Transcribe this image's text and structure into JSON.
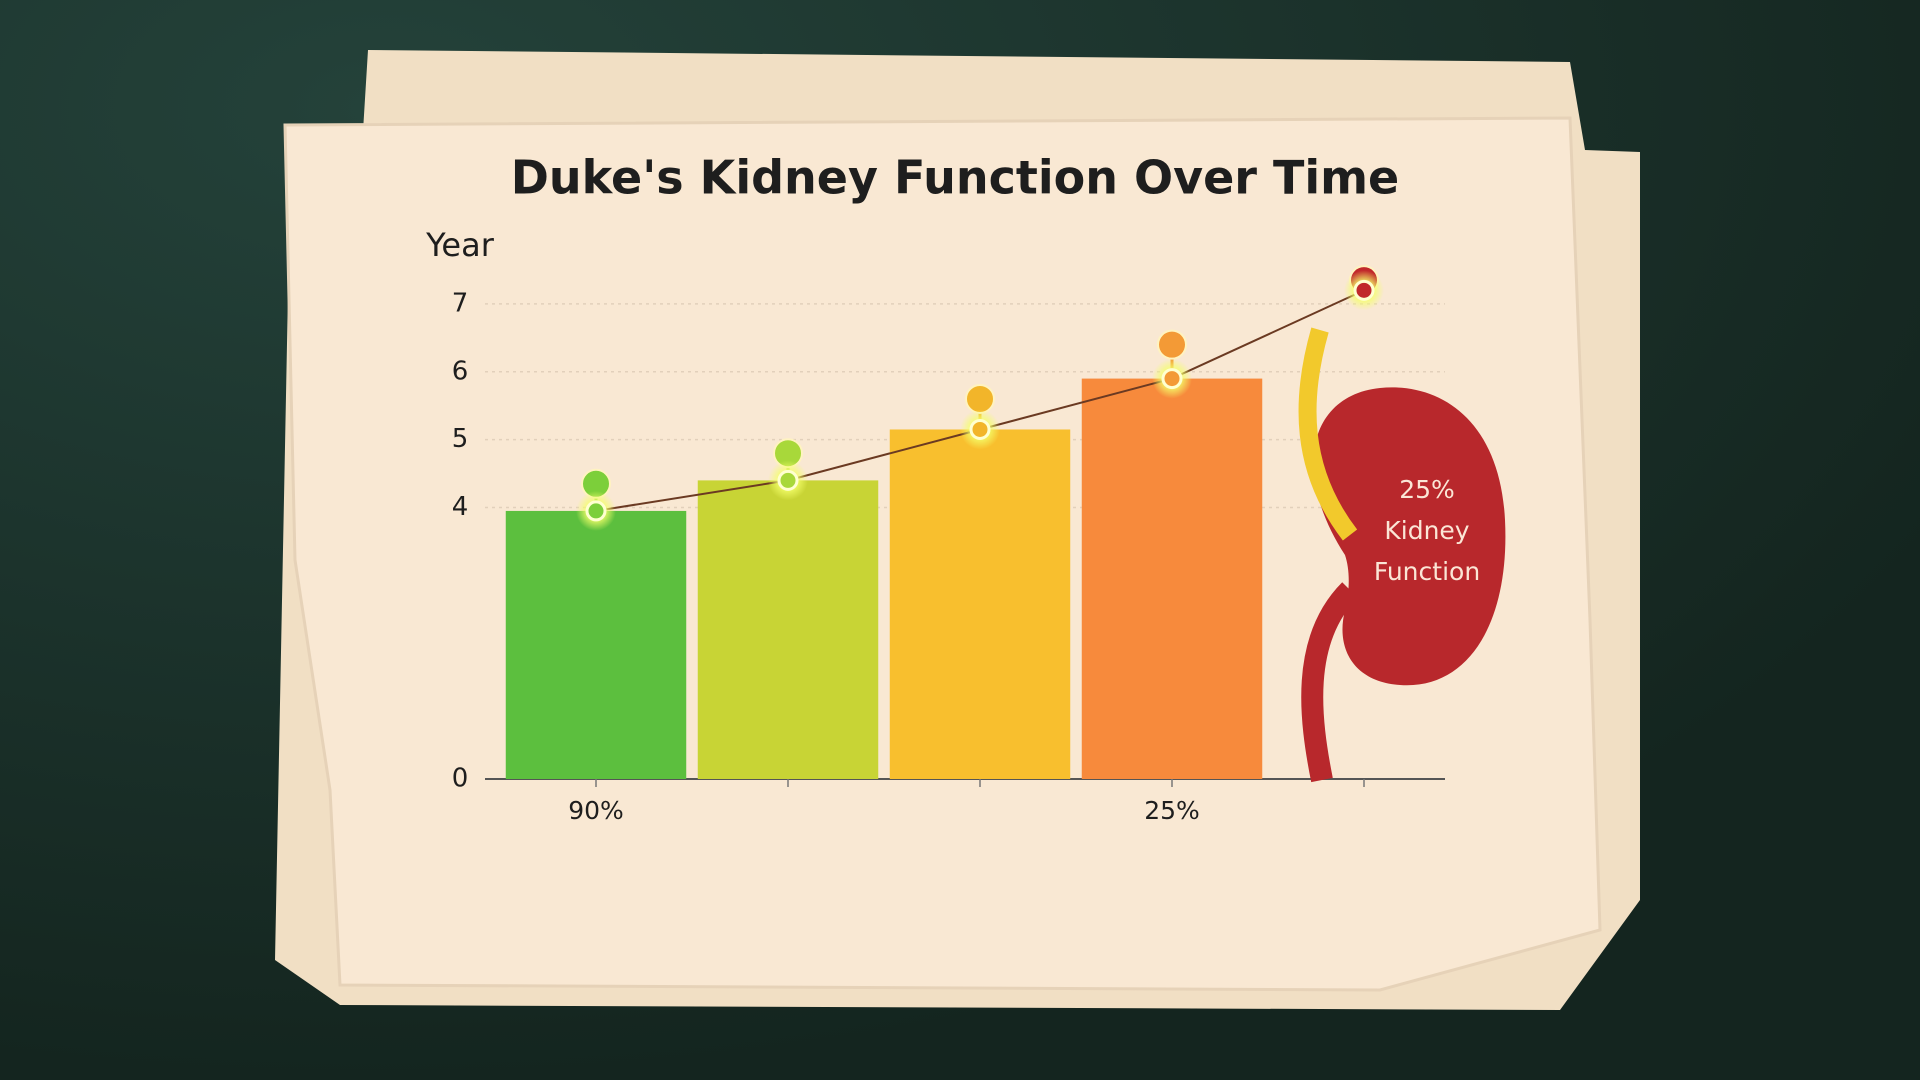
{
  "chart_data": {
    "type": "bar",
    "title": "Duke's Kidney Function Over Time",
    "y_label": "Year",
    "categories": [
      "90%",
      null,
      null,
      "25%",
      null
    ],
    "values": [
      3.95,
      4.4,
      5.15,
      5.9,
      7.2
    ],
    "marker_values": [
      4.35,
      4.8,
      5.6,
      6.4,
      7.35
    ],
    "bar_colors": [
      "#5cbf3e",
      "#c8d435",
      "#f8bf2e",
      "#f78a3c",
      null
    ],
    "colors": [
      "#7ccf3a",
      "#a8d83a",
      "#f2b52a",
      "#f39a36",
      "#c1282b"
    ],
    "line_color": "#6b3a22",
    "ylim": [
      0,
      7.5
    ],
    "yticks": [
      0,
      4,
      5,
      6,
      7
    ],
    "grid": true,
    "annotation": [
      "25%",
      "Kidney",
      "Function"
    ]
  }
}
